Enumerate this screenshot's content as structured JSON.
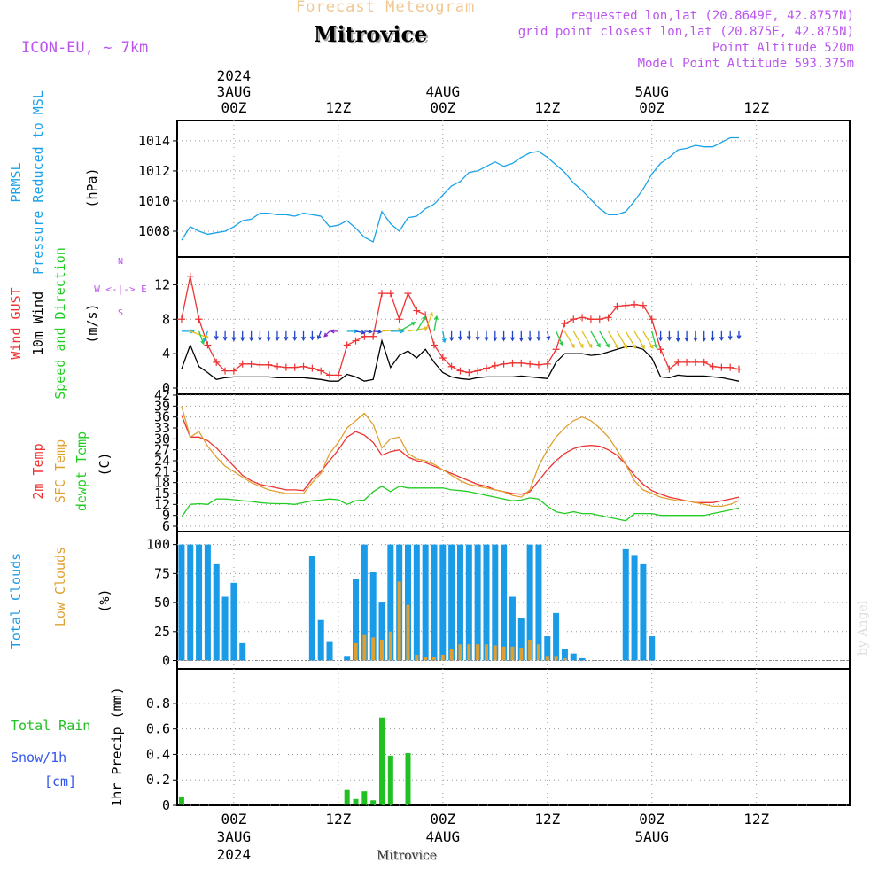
{
  "header": {
    "product": "Forecast Meteogram",
    "location": "Mitrovice",
    "model": "ICON-EU, ~ 7km",
    "requested": "requested lon,lat (20.8649E, 42.8757N)",
    "grid_point": "grid point closest lon,lat (20.875E, 42.875N)",
    "point_altitude": "Point Altitude 520m",
    "model_altitude": "Model Point Altitude 593.375m",
    "footer_location": "Mitrovice",
    "credit": "by Angel"
  },
  "colors": {
    "pressure": "#1aa3e8",
    "gust": "#ee3333",
    "wind": "#000000",
    "temp2m": "#ee3333",
    "sfc_temp": "#e0a030",
    "dewpt": "#22cc22",
    "total_clouds": "#1a9be8",
    "low_clouds": "#e0a030",
    "rain": "#22c022",
    "snow": "#3355ee",
    "header_orange": "#f0c890",
    "header_purple": "#bb55ee"
  },
  "chart_data": {
    "type": "meteogram",
    "time": {
      "start": "2024-08-02T18Z",
      "step_hours": 1,
      "count": 65,
      "top_ticks": [
        {
          "hour": 6,
          "lines": [
            "2024",
            "3AUG",
            "00Z"
          ]
        },
        {
          "hour": 18,
          "lines": [
            "12Z"
          ]
        },
        {
          "hour": 30,
          "lines": [
            "4AUG",
            "00Z"
          ]
        },
        {
          "hour": 42,
          "lines": [
            "12Z"
          ]
        },
        {
          "hour": 54,
          "lines": [
            "5AUG",
            "00Z"
          ]
        },
        {
          "hour": 66,
          "lines": [
            "12Z"
          ]
        }
      ],
      "bottom_ticks": [
        {
          "hour": 6,
          "lines": [
            "00Z",
            "3AUG",
            "2024"
          ]
        },
        {
          "hour": 18,
          "lines": [
            "12Z"
          ]
        },
        {
          "hour": 30,
          "lines": [
            "00Z",
            "4AUG"
          ]
        },
        {
          "hour": 42,
          "lines": [
            "12Z"
          ]
        },
        {
          "hour": 54,
          "lines": [
            "00Z",
            "5AUG"
          ]
        },
        {
          "hour": 66,
          "lines": [
            "12Z"
          ]
        }
      ]
    },
    "panels": [
      {
        "id": "pressure",
        "labels": [
          {
            "text": "PRMSL",
            "color": "pressure"
          },
          {
            "text": "Pressure Reduced to MSL",
            "color": "pressure"
          },
          {
            "text": "(hPa)",
            "color": "wind"
          }
        ],
        "ylim": [
          1007,
          1014.7
        ],
        "yticks": [
          1008,
          1010,
          1012,
          1014
        ],
        "series": [
          {
            "key": "prmsl",
            "color": "pressure",
            "mode": "line",
            "values": [
              1007.4,
              1008.3,
              1008.0,
              1007.8,
              1007.9,
              1008.0,
              1008.3,
              1008.7,
              1008.8,
              1009.2,
              1009.2,
              1009.1,
              1009.1,
              1009.0,
              1009.2,
              1009.1,
              1009.0,
              1008.3,
              1008.4,
              1008.7,
              1008.2,
              1007.6,
              1007.3,
              1009.3,
              1008.5,
              1008.0,
              1008.9,
              1009.0,
              1009.5,
              1009.8,
              1010.4,
              1011.0,
              1011.3,
              1011.9,
              1012.0,
              1012.3,
              1012.6,
              1012.3,
              1012.5,
              1012.9,
              1013.2,
              1013.3,
              1012.9,
              1012.4,
              1011.9,
              1011.2,
              1010.7,
              1010.1,
              1009.5,
              1009.1,
              1009.1,
              1009.3,
              1010.0,
              1010.8,
              1011.8,
              1012.5,
              1012.9,
              1013.4,
              1013.5,
              1013.7,
              1013.6,
              1013.6,
              1013.9,
              1014.2,
              1014.2
            ]
          }
        ]
      },
      {
        "id": "wind",
        "labels": [
          {
            "text": "Wind GUST",
            "color": "gust"
          },
          {
            "text": "10m Wind",
            "color": "wind"
          },
          {
            "text": "Speed and Direction",
            "color": "dewpt"
          },
          {
            "text": "(m/s)",
            "color": "wind"
          }
        ],
        "compass": "W <-|-> E",
        "ylim": [
          0,
          14
        ],
        "yticks": [
          0,
          4,
          8,
          12
        ],
        "series": [
          {
            "key": "gust",
            "color": "gust",
            "mode": "line+marker",
            "values": [
              8.0,
              13.0,
              8.0,
              5.0,
              3.0,
              2.0,
              2.0,
              2.8,
              2.8,
              2.7,
              2.7,
              2.5,
              2.4,
              2.4,
              2.5,
              2.3,
              2.0,
              1.5,
              1.5,
              5.0,
              5.5,
              6.0,
              6.0,
              11.0,
              11.0,
              8.0,
              11.0,
              9.0,
              8.5,
              5.0,
              3.5,
              2.5,
              2.0,
              1.8,
              2.0,
              2.3,
              2.6,
              2.8,
              2.9,
              2.9,
              2.8,
              2.7,
              2.8,
              4.5,
              7.5,
              8.0,
              8.2,
              8.0,
              8.0,
              8.2,
              9.5,
              9.6,
              9.7,
              9.6,
              8.0,
              4.5,
              2.2,
              3.0,
              3.0,
              3.0,
              3.0,
              2.5,
              2.4,
              2.4,
              2.2
            ]
          },
          {
            "key": "wind10m",
            "color": "wind",
            "mode": "line",
            "values": [
              2.2,
              5.0,
              2.5,
              1.8,
              1.0,
              1.2,
              1.3,
              1.3,
              1.3,
              1.3,
              1.3,
              1.2,
              1.2,
              1.2,
              1.2,
              1.1,
              1.0,
              0.8,
              0.8,
              1.6,
              1.3,
              0.8,
              1.0,
              5.5,
              2.4,
              3.8,
              4.3,
              3.5,
              4.5,
              3.0,
              1.8,
              1.3,
              1.1,
              1.0,
              1.2,
              1.3,
              1.3,
              1.3,
              1.3,
              1.4,
              1.3,
              1.2,
              1.1,
              3.0,
              4.0,
              4.0,
              4.0,
              3.8,
              3.9,
              4.2,
              4.5,
              4.8,
              4.8,
              4.5,
              3.5,
              1.3,
              1.2,
              1.5,
              1.4,
              1.4,
              1.4,
              1.3,
              1.2,
              1.0,
              0.8
            ]
          }
        ],
        "arrows": {
          "y_value": 6.6,
          "direction_deg": [
            90,
            110,
            160,
            200,
            180,
            180,
            180,
            180,
            180,
            180,
            180,
            180,
            180,
            180,
            180,
            180,
            200,
            225,
            270,
            90,
            100,
            95,
            95,
            85,
            90,
            60,
            80,
            30,
            20,
            10,
            170,
            180,
            180,
            180,
            180,
            180,
            180,
            180,
            180,
            180,
            180,
            180,
            170,
            155,
            150,
            150,
            150,
            150,
            150,
            150,
            150,
            150,
            150,
            150,
            165,
            180,
            180,
            180,
            180,
            180,
            180,
            180,
            180,
            180,
            180
          ]
        }
      },
      {
        "id": "temperature",
        "labels": [
          {
            "text": "2m Temp",
            "color": "temp2m"
          },
          {
            "text": "SFC Temp",
            "color": "sfc_temp"
          },
          {
            "text": "dewpt Temp",
            "color": "dewpt"
          },
          {
            "text": "(C)",
            "color": "wind"
          }
        ],
        "ylim": [
          6,
          42
        ],
        "yticks": [
          6,
          9,
          12,
          15,
          18,
          21,
          24,
          27,
          30,
          33,
          36,
          39,
          42
        ],
        "series": [
          {
            "key": "t2m",
            "color": "temp2m",
            "mode": "line",
            "values": [
              36.5,
              30.5,
              30.5,
              29.5,
              27.5,
              25.0,
              22.5,
              20.0,
              18.5,
              17.5,
              17.0,
              16.5,
              16.0,
              16.0,
              15.8,
              19.0,
              21.0,
              24.0,
              27.0,
              30.5,
              32.0,
              31.0,
              29.0,
              25.5,
              26.5,
              27.0,
              25.0,
              24.0,
              23.5,
              22.5,
              21.5,
              20.5,
              19.5,
              18.5,
              17.5,
              17.0,
              16.0,
              15.5,
              15.0,
              14.8,
              15.5,
              18.5,
              21.5,
              24.0,
              26.0,
              27.3,
              28.0,
              28.2,
              28.0,
              27.0,
              25.5,
              23.0,
              20.0,
              17.5,
              15.8,
              14.8,
              14.0,
              13.5,
              13.0,
              12.5,
              12.5,
              12.5,
              13.0,
              13.5,
              14.0
            ]
          },
          {
            "key": "sfc",
            "color": "sfc_temp",
            "mode": "line",
            "values": [
              39.0,
              30.5,
              32.0,
              28.0,
              25.0,
              22.5,
              21.0,
              19.5,
              18.0,
              17.0,
              16.0,
              15.5,
              15.0,
              15.0,
              15.0,
              18.0,
              20.5,
              26.0,
              29.0,
              33.0,
              35.0,
              37.0,
              34.0,
              27.5,
              30.0,
              30.5,
              26.0,
              24.5,
              24.0,
              23.0,
              21.5,
              20.0,
              18.5,
              17.5,
              17.0,
              16.5,
              16.0,
              15.5,
              14.5,
              14.0,
              16.0,
              22.5,
              27.0,
              30.5,
              33.0,
              35.0,
              36.0,
              35.0,
              33.0,
              30.5,
              27.0,
              23.0,
              18.5,
              16.0,
              15.0,
              14.0,
              13.5,
              13.0,
              13.0,
              12.5,
              12.0,
              11.5,
              11.5,
              12.0,
              13.0
            ]
          },
          {
            "key": "dewpt",
            "color": "dewpt",
            "mode": "line",
            "values": [
              8.5,
              12.0,
              12.2,
              12.0,
              13.5,
              13.5,
              13.3,
              13.0,
              12.8,
              12.5,
              12.3,
              12.2,
              12.2,
              12.0,
              12.5,
              13.0,
              13.2,
              13.5,
              13.3,
              12.0,
              13.0,
              13.2,
              15.5,
              17.0,
              15.5,
              17.0,
              16.5,
              16.5,
              16.5,
              16.5,
              16.5,
              16.0,
              15.8,
              15.5,
              15.0,
              14.5,
              14.0,
              13.5,
              13.0,
              13.2,
              13.8,
              13.5,
              11.5,
              10.0,
              9.5,
              10.0,
              9.5,
              9.5,
              9.0,
              8.5,
              8.0,
              7.5,
              9.5,
              9.5,
              9.5,
              9.0,
              9.0,
              9.0,
              9.0,
              9.0,
              9.0,
              9.5,
              10.0,
              10.5,
              11.0
            ]
          }
        ]
      },
      {
        "id": "clouds",
        "labels": [
          {
            "text": "Total Clouds",
            "color": "total_clouds"
          },
          {
            "text": "Low Clouds",
            "color": "low_clouds"
          },
          {
            "text": "(%)",
            "color": "wind"
          }
        ],
        "ylim": [
          -8,
          102
        ],
        "yticks": [
          0,
          25,
          50,
          75,
          100
        ],
        "series": [
          {
            "key": "total_clouds",
            "color": "total_clouds",
            "mode": "bar",
            "values": [
              100,
              100,
              100,
              100,
              83,
              55,
              67,
              15,
              0,
              0,
              0,
              0,
              0,
              0,
              0,
              90,
              35,
              16,
              0,
              4,
              70,
              100,
              76,
              50,
              100,
              100,
              100,
              100,
              100,
              100,
              100,
              100,
              100,
              100,
              100,
              100,
              100,
              100,
              55,
              37,
              100,
              100,
              21,
              41,
              10,
              6,
              2,
              0,
              0,
              0,
              0,
              96,
              91,
              83,
              21,
              0,
              0,
              0,
              0,
              0,
              0,
              0,
              0,
              0,
              0
            ]
          },
          {
            "key": "low_clouds",
            "color": "low_clouds",
            "mode": "bar",
            "values": [
              0,
              0,
              0,
              0,
              0,
              0,
              0,
              0,
              0,
              0,
              0,
              0,
              0,
              0,
              0,
              0,
              0,
              0,
              0,
              0,
              15,
              22,
              20,
              18,
              25,
              68,
              48,
              5,
              3,
              3,
              5,
              10,
              14,
              14,
              14,
              14,
              13,
              12,
              12,
              11,
              18,
              14,
              4,
              4,
              2,
              0,
              0,
              0,
              0,
              0,
              0,
              0,
              0,
              0,
              0,
              0,
              0,
              0,
              0,
              0,
              0,
              0,
              0,
              0,
              0
            ]
          }
        ]
      },
      {
        "id": "precip",
        "labels": [
          {
            "text": "Total  Rain",
            "color": "rain"
          },
          {
            "text": "Snow/1h",
            "color": "snow"
          },
          {
            "text": "[cm]",
            "color": "snow"
          },
          {
            "text": "1hr Precip (mm)",
            "color": "wind"
          }
        ],
        "ylim": [
          0,
          0.98
        ],
        "yticks": [
          0,
          0.2,
          0.4,
          0.6,
          0.8
        ],
        "series": [
          {
            "key": "rain",
            "color": "rain",
            "mode": "bar",
            "values": [
              0.07,
              0,
              0,
              0,
              0,
              0,
              0,
              0,
              0,
              0,
              0,
              0,
              0,
              0,
              0,
              0,
              0,
              0,
              0,
              0.12,
              0.05,
              0.11,
              0.04,
              0.69,
              0.39,
              0,
              0.41,
              0,
              0,
              0,
              0,
              0,
              0,
              0,
              0,
              0,
              0,
              0,
              0,
              0,
              0,
              0,
              0,
              0,
              0,
              0,
              0,
              0,
              0,
              0,
              0,
              0,
              0,
              0,
              0,
              0,
              0,
              0,
              0,
              0,
              0,
              0,
              0,
              0,
              0
            ]
          }
        ]
      }
    ]
  }
}
